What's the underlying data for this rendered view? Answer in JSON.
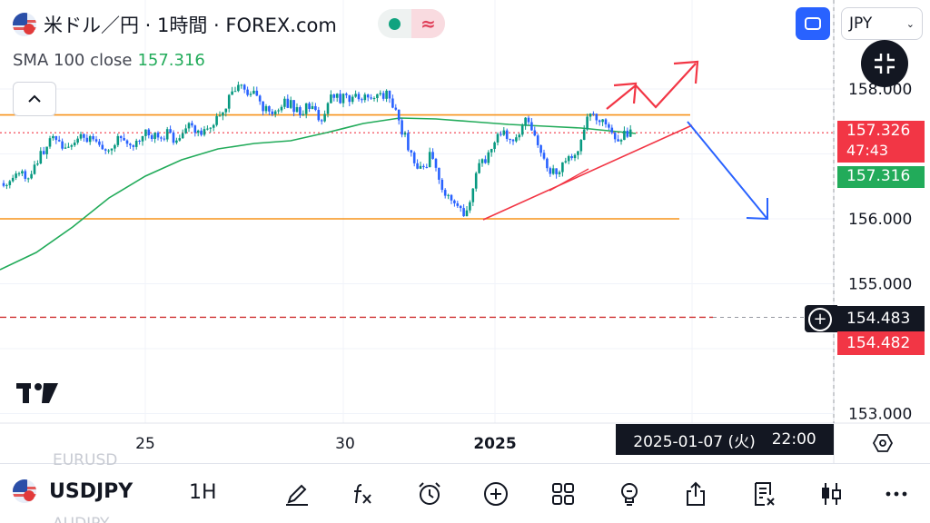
{
  "header": {
    "title": "米ドル／円 · 1時間 · FOREX.com",
    "pill_right_symbol": "≈",
    "currency": "JPY",
    "currency_chevron": "⌄"
  },
  "indicator": {
    "label": "SMA 100 close",
    "value": "157.316"
  },
  "price_tags": {
    "close": "157.326",
    "countdown": "47:43",
    "sma": "157.316",
    "crosshair": "154.483",
    "crosshair_right_margin_label": "154.482"
  },
  "crosshair_date": {
    "date": "2025-01-07 (火)",
    "time": "22:00"
  },
  "logo": "17",
  "toolbar": {
    "symbol": "USDJPY",
    "interval": "1H",
    "ghost_above": "EURUSD",
    "ghost_below": "AUDJPY",
    "icons": [
      "draw-icon",
      "fx-icon",
      "alarm-icon",
      "add-icon",
      "grid-icon",
      "idea-icon",
      "share-icon",
      "list-icon",
      "candle-icon",
      "more-icon"
    ]
  },
  "colors": {
    "up": "#089981",
    "down": "#2962ff",
    "sma": "#22ab5a",
    "hline": "#f7931a",
    "close_tag": "#f23645",
    "trend": "#f23645",
    "arrow_blue": "#2962ff"
  },
  "chart_data": {
    "type": "candlestick",
    "symbol": "USDJPY",
    "timeframe": "1H",
    "ylim": [
      152.5,
      159.0
    ],
    "y_ticks": [
      "158.000",
      "156.000",
      "155.000",
      "153.000"
    ],
    "x_ticks": [
      "25",
      "30",
      "2025"
    ],
    "horizontal_levels": [
      157.6,
      156.0
    ],
    "last_price": 157.326,
    "sma_value": 157.316,
    "crosshair_price": 154.483,
    "path": [
      [
        0,
        156.55
      ],
      [
        10,
        156.5
      ],
      [
        20,
        156.7
      ],
      [
        30,
        156.6
      ],
      [
        40,
        156.9
      ],
      [
        50,
        157.1
      ],
      [
        60,
        157.25
      ],
      [
        70,
        157.15
      ],
      [
        85,
        157.2
      ],
      [
        100,
        157.3
      ],
      [
        115,
        157.1
      ],
      [
        130,
        157.2
      ],
      [
        145,
        157.15
      ],
      [
        160,
        157.3
      ],
      [
        175,
        157.25
      ],
      [
        185,
        157.35
      ],
      [
        195,
        157.15
      ],
      [
        205,
        157.4
      ],
      [
        220,
        157.35
      ],
      [
        235,
        157.45
      ],
      [
        245,
        157.65
      ],
      [
        255,
        158.0
      ],
      [
        265,
        158.0
      ],
      [
        275,
        157.95
      ],
      [
        285,
        157.8
      ],
      [
        300,
        157.6
      ],
      [
        315,
        157.8
      ],
      [
        330,
        157.65
      ],
      [
        345,
        157.75
      ],
      [
        355,
        157.45
      ],
      [
        365,
        157.9
      ],
      [
        380,
        157.85
      ],
      [
        395,
        157.9
      ],
      [
        410,
        157.8
      ],
      [
        425,
        157.9
      ],
      [
        435,
        157.65
      ],
      [
        445,
        157.3
      ],
      [
        455,
        156.95
      ],
      [
        465,
        156.75
      ],
      [
        475,
        157.0
      ],
      [
        485,
        156.5
      ],
      [
        495,
        156.3
      ],
      [
        505,
        156.15
      ],
      [
        515,
        156.05
      ],
      [
        520,
        156.5
      ],
      [
        528,
        156.8
      ],
      [
        538,
        156.95
      ],
      [
        548,
        157.25
      ],
      [
        560,
        157.3
      ],
      [
        570,
        157.2
      ],
      [
        578,
        157.6
      ],
      [
        588,
        157.35
      ],
      [
        598,
        157.0
      ],
      [
        606,
        156.75
      ],
      [
        614,
        156.65
      ],
      [
        622,
        156.95
      ],
      [
        632,
        156.85
      ],
      [
        640,
        157.2
      ],
      [
        648,
        157.6
      ],
      [
        656,
        157.55
      ],
      [
        664,
        157.45
      ],
      [
        672,
        157.3
      ],
      [
        680,
        157.25
      ],
      [
        690,
        157.32
      ],
      [
        697,
        157.33
      ]
    ]
  }
}
